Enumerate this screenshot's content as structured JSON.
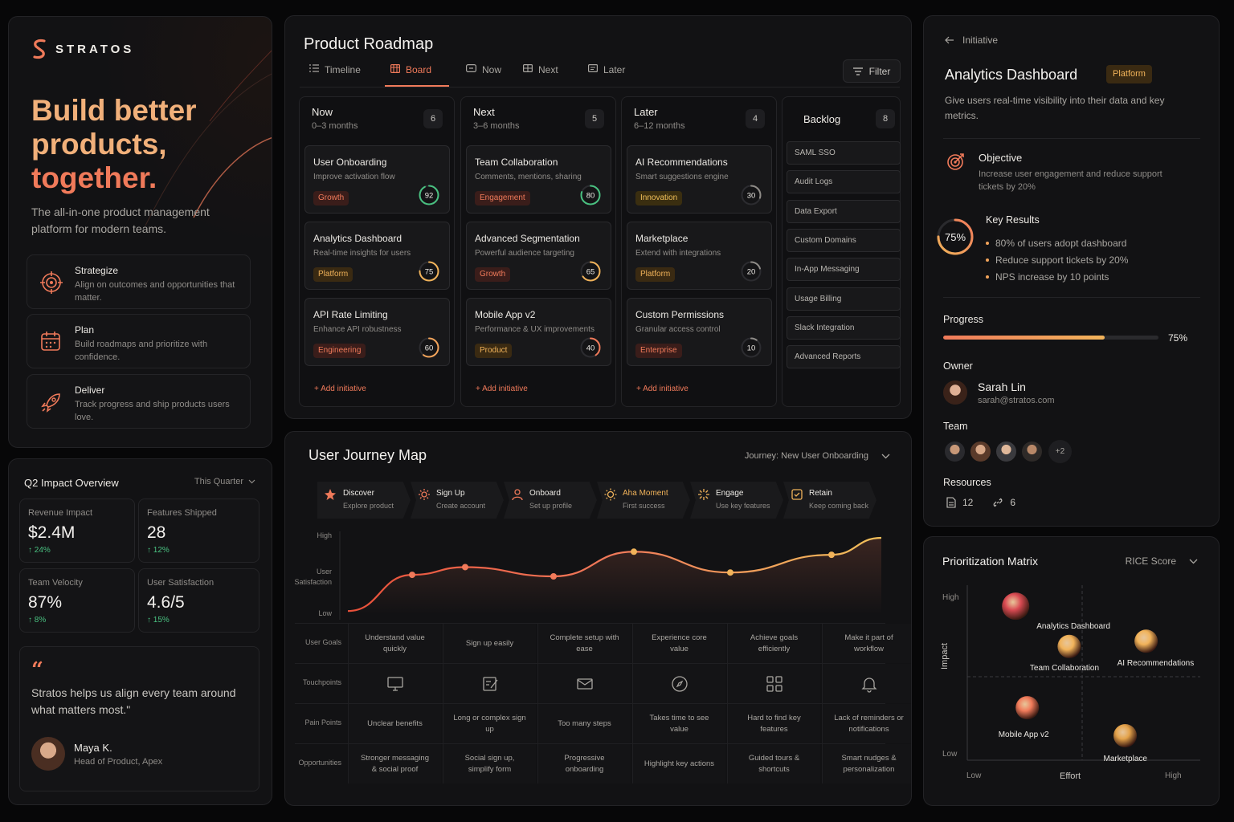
{
  "brand": {
    "name": "STRATOS",
    "accent": "#f07a5a",
    "accent2": "#f1b35a"
  },
  "hero": {
    "title_lines": [
      "Build better",
      "products,",
      "together."
    ],
    "subtitle": "The all-in-one product management platform for modern teams.",
    "features": [
      {
        "title": "Strategize",
        "desc": "Align on outcomes and opportunities that matter.",
        "icon": "target-icon"
      },
      {
        "title": "Plan",
        "desc": "Build roadmaps and prioritize with confidence.",
        "icon": "calendar-icon"
      },
      {
        "title": "Deliver",
        "desc": "Track progress and ship products users love.",
        "icon": "rocket-icon"
      }
    ]
  },
  "impact": {
    "title": "Q2 Impact Overview",
    "filter": "This Quarter",
    "stats": [
      {
        "label": "Revenue Impact",
        "value": "$2.4M",
        "delta": "↑ 24%"
      },
      {
        "label": "Features Shipped",
        "value": "28",
        "delta": "↑ 12%"
      },
      {
        "label": "Team Velocity",
        "value": "87%",
        "delta": "↑ 8%"
      },
      {
        "label": "User Satisfaction",
        "value": "4.6/5",
        "delta": "↑ 15%"
      }
    ],
    "quote": {
      "mark": "“",
      "text": "Stratos helps us align every team around what matters most.\"",
      "name": "Maya K.",
      "role": "Head of Product, Apex"
    }
  },
  "roadmap": {
    "title": "Product Roadmap",
    "tabs": [
      {
        "label": "Timeline",
        "icon": "list-icon"
      },
      {
        "label": "Board",
        "icon": "board-icon"
      },
      {
        "label": "Now",
        "icon": "now-icon"
      },
      {
        "label": "Next",
        "icon": "next-icon"
      },
      {
        "label": "Later",
        "icon": "later-icon"
      }
    ],
    "active_tab": "Board",
    "filter_label": "Filter",
    "add_label": "+  Add initiative",
    "columns": [
      {
        "name": "Now",
        "sub": "0–3 months",
        "count": "6",
        "cards": [
          {
            "title": "User Onboarding",
            "desc": "Improve activation flow",
            "tag": "Growth",
            "tagclass": "tag-growth",
            "score": "92",
            "pct": 92,
            "color": "#49c080"
          },
          {
            "title": "Analytics Dashboard",
            "desc": "Real-time insights for users",
            "tag": "Platform",
            "tagclass": "tag-platform",
            "score": "75",
            "pct": 75,
            "color": "#f1b35a"
          },
          {
            "title": "API Rate Limiting",
            "desc": "Enhance API robustness",
            "tag": "Engineering",
            "tagclass": "tag-eng",
            "score": "60",
            "pct": 60,
            "color": "#f1a35a"
          }
        ]
      },
      {
        "name": "Next",
        "sub": "3–6 months",
        "count": "5",
        "cards": [
          {
            "title": "Team Collaboration",
            "desc": "Comments, mentions, sharing",
            "tag": "Engagement",
            "tagclass": "tag-engage",
            "score": "80",
            "pct": 80,
            "color": "#49c080"
          },
          {
            "title": "Advanced Segmentation",
            "desc": "Powerful audience targeting",
            "tag": "Growth",
            "tagclass": "tag-growth",
            "score": "65",
            "pct": 65,
            "color": "#f1b35a"
          },
          {
            "title": "Mobile App v2",
            "desc": "Performance & UX improvements",
            "tag": "Product",
            "tagclass": "tag-product",
            "score": "40",
            "pct": 40,
            "color": "#f07a5a"
          }
        ]
      },
      {
        "name": "Later",
        "sub": "6–12 months",
        "count": "4",
        "cards": [
          {
            "title": "AI Recommendations",
            "desc": "Smart suggestions engine",
            "tag": "Innovation",
            "tagclass": "tag-innov",
            "score": "30",
            "pct": 30,
            "color": "#8f8c88"
          },
          {
            "title": "Marketplace",
            "desc": "Extend with integrations",
            "tag": "Platform",
            "tagclass": "tag-platform",
            "score": "20",
            "pct": 20,
            "color": "#8f8c88"
          },
          {
            "title": "Custom Permissions",
            "desc": "Granular access control",
            "tag": "Enterprise",
            "tagclass": "tag-ent",
            "score": "10",
            "pct": 10,
            "color": "#8f8c88"
          }
        ]
      }
    ],
    "backlog": {
      "title": "Backlog",
      "count": "8",
      "items": [
        "SAML SSO",
        "Audit Logs",
        "Data Export",
        "Custom Domains",
        "In-App Messaging",
        "Usage Billing",
        "Slack Integration",
        "Advanced Reports"
      ]
    }
  },
  "journey": {
    "title": "User Journey Map",
    "selector": "Journey: New User Onboarding",
    "stages": [
      {
        "name": "Discover",
        "desc": "Explore product",
        "icon": "star-icon"
      },
      {
        "name": "Sign Up",
        "desc": "Create account",
        "icon": "gear-icon"
      },
      {
        "name": "Onboard",
        "desc": "Set up profile",
        "icon": "user-icon"
      },
      {
        "name": "Aha Moment",
        "desc": "First success",
        "icon": "sun-icon"
      },
      {
        "name": "Engage",
        "desc": "Use key features",
        "icon": "sparkle-icon"
      },
      {
        "name": "Retain",
        "desc": "Keep coming back",
        "icon": "badge-icon"
      }
    ],
    "y_labels": {
      "high": "High",
      "mid": "User\nSatisfaction",
      "low": "Low"
    },
    "satisfaction": [
      0.05,
      0.52,
      0.62,
      0.5,
      0.82,
      0.55,
      0.78,
      1.0
    ],
    "rows": [
      {
        "label": "User Goals",
        "cells": [
          "Understand value quickly",
          "Sign up easily",
          "Complete setup with ease",
          "Experience core value",
          "Achieve goals efficiently",
          "Make it part of workflow"
        ]
      },
      {
        "label": "Touchpoints",
        "icons": [
          "monitor-icon",
          "form-icon",
          "mail-icon",
          "compass-icon",
          "grid-icon",
          "bell-icon"
        ]
      },
      {
        "label": "Pain Points",
        "cells": [
          "Unclear benefits",
          "Long or complex sign up",
          "Too many steps",
          "Takes time to see value",
          "Hard to find key features",
          "Lack of reminders or notifications"
        ]
      },
      {
        "label": "Opportunities",
        "cells": [
          "Stronger messaging & social proof",
          "Social sign up, simplify form",
          "Progressive onboarding",
          "Highlight key actions",
          "Guided tours & shortcuts",
          "Smart nudges & personalization"
        ]
      }
    ]
  },
  "initiative": {
    "back_label": "Initiative",
    "title": "Analytics Dashboard",
    "tag": "Platform",
    "desc": "Give users real-time visibility into their data and key metrics.",
    "objective_title": "Objective",
    "objective_desc": "Increase user engagement and reduce support tickets by 20%",
    "kr_title": "Key Results",
    "kr_pct": "75%",
    "kr_value": 0.75,
    "key_results": [
      "80% of users adopt dashboard",
      "Reduce support tickets by 20%",
      "NPS increase by 10 points"
    ],
    "progress_label": "Progress",
    "progress_value": 0.75,
    "progress_text": "75%",
    "owner_label": "Owner",
    "owner_name": "Sarah Lin",
    "owner_email": "sarah@stratos.com",
    "team_label": "Team",
    "team_more": "+2",
    "resources_label": "Resources",
    "docs_count": "12",
    "links_count": "6"
  },
  "matrix": {
    "title": "Prioritization Matrix",
    "selector": "RICE Score",
    "y_high": "High",
    "y_low": "Low",
    "y_axis": "Impact",
    "x_low": "Low",
    "x_axis": "Effort",
    "x_high": "High",
    "chart_data": {
      "type": "scatter",
      "x_axis": "Effort",
      "y_axis": "Impact",
      "points": [
        {
          "name": "Analytics Dashboard",
          "effort": 0.18,
          "impact": 0.88,
          "color": "#d84a52"
        },
        {
          "name": "Team Collaboration",
          "effort": 0.41,
          "impact": 0.65,
          "color": "#f1b35a"
        },
        {
          "name": "AI Recommendations",
          "effort": 0.74,
          "impact": 0.68,
          "color": "#f1b35a"
        },
        {
          "name": "Mobile App v2",
          "effort": 0.23,
          "impact": 0.3,
          "color": "#f07a5a"
        },
        {
          "name": "Marketplace",
          "effort": 0.65,
          "impact": 0.14,
          "color": "#e3a24a"
        }
      ]
    }
  }
}
